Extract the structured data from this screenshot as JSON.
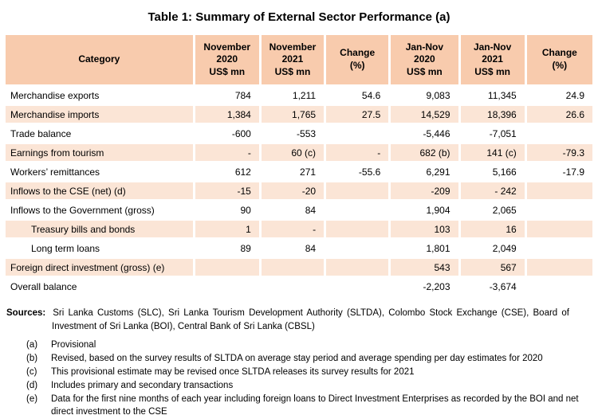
{
  "title": "Table 1: Summary of External Sector Performance (a)",
  "colors": {
    "header_bg": "#F8CBAD",
    "alt_row_bg": "#FBE5D6",
    "text": "#000000"
  },
  "table": {
    "headers": [
      "Category",
      "November\n2020\nUS$ mn",
      "November\n2021\nUS$ mn",
      "Change\n(%)",
      "Jan-Nov\n2020\nUS$ mn",
      "Jan-Nov\n2021\nUS$ mn",
      "Change\n(%)"
    ],
    "rows": [
      {
        "category": "Merchandise exports",
        "indent": false,
        "shaded": false,
        "values": [
          "784",
          "1,211",
          "54.6",
          "9,083",
          "11,345",
          "24.9"
        ]
      },
      {
        "category": "Merchandise imports",
        "indent": false,
        "shaded": true,
        "values": [
          "1,384",
          "1,765",
          "27.5",
          "14,529",
          "18,396",
          "26.6"
        ]
      },
      {
        "category": "Trade balance",
        "indent": false,
        "shaded": false,
        "values": [
          "-600",
          "-553",
          "",
          "-5,446",
          "-7,051",
          ""
        ]
      },
      {
        "category": "Earnings from tourism",
        "indent": false,
        "shaded": true,
        "values": [
          "-",
          "60 (c)",
          "-",
          "682 (b)",
          "141 (c)",
          "-79.3"
        ]
      },
      {
        "category": "Workers’ remittances",
        "indent": false,
        "shaded": false,
        "values": [
          "612",
          "271",
          "-55.6",
          "6,291",
          "5,166",
          "-17.9"
        ]
      },
      {
        "category": "Inflows to the CSE (net) (d)",
        "indent": false,
        "shaded": true,
        "values": [
          "-15",
          "-20",
          "",
          "-209",
          "- 242",
          ""
        ]
      },
      {
        "category": "Inflows to the Government (gross)",
        "indent": false,
        "shaded": false,
        "values": [
          "90",
          "84",
          "",
          "1,904",
          "2,065",
          ""
        ]
      },
      {
        "category": "Treasury bills and bonds",
        "indent": true,
        "shaded": true,
        "values": [
          "1",
          "-",
          "",
          "103",
          "16",
          ""
        ]
      },
      {
        "category": "Long term loans",
        "indent": true,
        "shaded": false,
        "values": [
          "89",
          "84",
          "",
          "1,801",
          "2,049",
          ""
        ]
      },
      {
        "category": "Foreign direct investment (gross) (e)",
        "indent": false,
        "shaded": true,
        "values": [
          "",
          "",
          "",
          "543",
          "567",
          ""
        ]
      },
      {
        "category": "Overall balance",
        "indent": false,
        "shaded": false,
        "values": [
          "",
          "",
          "",
          "-2,203",
          "-3,674",
          ""
        ]
      }
    ]
  },
  "footer": {
    "sources_label": "Sources:",
    "sources_text": "Sri Lanka Customs (SLC), Sri Lanka Tourism Development Authority (SLTDA), Colombo Stock Exchange (CSE), Board of Investment of Sri Lanka (BOI), Central Bank of Sri Lanka (CBSL)",
    "footnotes": [
      {
        "marker": "(a)",
        "text": "Provisional"
      },
      {
        "marker": "(b)",
        "text": "Revised, based on the survey results of SLTDA on average stay period and average spending per day estimates for 2020"
      },
      {
        "marker": "(c)",
        "text": "This provisional estimate may be revised once SLTDA releases its survey results for 2021"
      },
      {
        "marker": "(d)",
        "text": "Includes primary and secondary transactions"
      },
      {
        "marker": "(e)",
        "text": "Data for the first nine months of each year including foreign loans to Direct Investment Enterprises as recorded by the BOI and net direct investment to the CSE"
      }
    ]
  }
}
